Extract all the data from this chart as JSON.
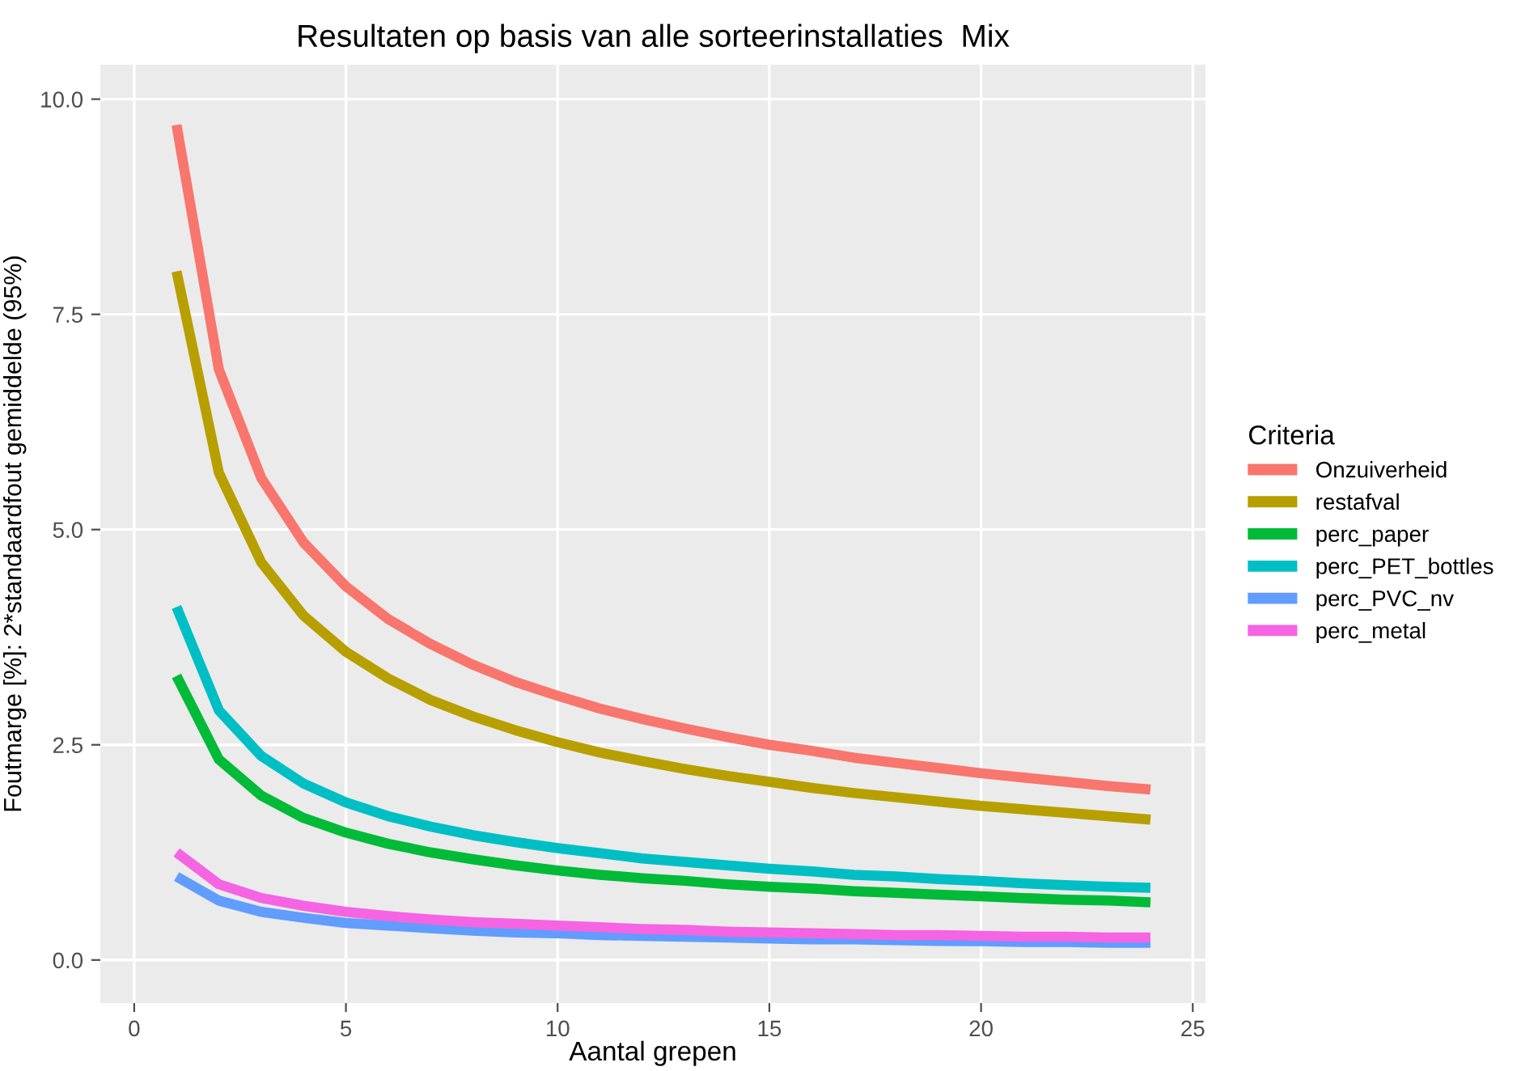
{
  "chart_data": {
    "type": "line",
    "title": "Resultaten op basis van alle sorteerinstallaties  Mix",
    "xlabel": "Aantal grepen",
    "ylabel": "Foutmarge [%]: 2*standaardfout gemiddelde (95%)",
    "legend_title": "Criteria",
    "legend": "right",
    "grid": true,
    "line_style": "solid",
    "marker": "none",
    "x": [
      1,
      2,
      3,
      4,
      5,
      6,
      7,
      8,
      9,
      10,
      11,
      12,
      13,
      14,
      15,
      16,
      17,
      18,
      19,
      20,
      21,
      22,
      23,
      24
    ],
    "xlim": [
      -0.8,
      25.3
    ],
    "xticks": [
      0,
      5,
      10,
      15,
      20,
      25
    ],
    "ylim": [
      -0.5,
      10.4
    ],
    "yticks": [
      {
        "value": 0,
        "label": "0.0"
      },
      {
        "value": 2.5,
        "label": "2.5"
      },
      {
        "value": 5,
        "label": "5.0"
      },
      {
        "value": 7.5,
        "label": "7.5"
      },
      {
        "value": 10,
        "label": "10.0"
      }
    ],
    "series": [
      {
        "name": "Onzuiverheid",
        "color": "#f8766d",
        "values": [
          9.7,
          6.86,
          5.6,
          4.85,
          4.34,
          3.96,
          3.67,
          3.43,
          3.23,
          3.07,
          2.92,
          2.8,
          2.69,
          2.59,
          2.5,
          2.43,
          2.35,
          2.29,
          2.23,
          2.17,
          2.12,
          2.07,
          2.02,
          1.98
        ]
      },
      {
        "name": "restafval",
        "color": "#b79f00",
        "values": [
          8.0,
          5.66,
          4.62,
          4.0,
          3.58,
          3.27,
          3.02,
          2.83,
          2.67,
          2.53,
          2.41,
          2.31,
          2.22,
          2.14,
          2.07,
          2.0,
          1.94,
          1.89,
          1.84,
          1.79,
          1.75,
          1.71,
          1.67,
          1.63
        ]
      },
      {
        "name": "perc_paper",
        "color": "#00ba38",
        "values": [
          3.3,
          2.33,
          1.91,
          1.65,
          1.48,
          1.35,
          1.25,
          1.17,
          1.1,
          1.04,
          0.99,
          0.95,
          0.92,
          0.88,
          0.85,
          0.83,
          0.8,
          0.78,
          0.76,
          0.74,
          0.72,
          0.7,
          0.69,
          0.67
        ]
      },
      {
        "name": "perc_PET_bottles",
        "color": "#00bfc4",
        "values": [
          4.1,
          2.9,
          2.37,
          2.05,
          1.83,
          1.67,
          1.55,
          1.45,
          1.37,
          1.3,
          1.24,
          1.18,
          1.14,
          1.1,
          1.06,
          1.03,
          0.99,
          0.97,
          0.94,
          0.92,
          0.89,
          0.87,
          0.85,
          0.84
        ]
      },
      {
        "name": "perc_PVC_nv",
        "color": "#619cff",
        "values": [
          0.97,
          0.69,
          0.56,
          0.49,
          0.43,
          0.4,
          0.37,
          0.34,
          0.32,
          0.31,
          0.29,
          0.28,
          0.27,
          0.26,
          0.25,
          0.24,
          0.24,
          0.23,
          0.22,
          0.22,
          0.21,
          0.21,
          0.2,
          0.2
        ]
      },
      {
        "name": "perc_metal",
        "color": "#f564e3",
        "values": [
          1.25,
          0.88,
          0.72,
          0.63,
          0.56,
          0.51,
          0.47,
          0.44,
          0.42,
          0.4,
          0.38,
          0.36,
          0.35,
          0.33,
          0.32,
          0.31,
          0.3,
          0.29,
          0.29,
          0.28,
          0.27,
          0.27,
          0.26,
          0.26
        ]
      }
    ]
  }
}
